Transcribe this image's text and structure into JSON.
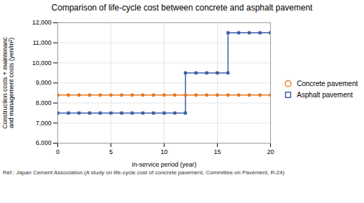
{
  "chart_data": {
    "type": "line",
    "title": "Comparison of life-cycle cost between concrete and asphalt pavement",
    "annotations": [
      "Ref.: Japan Cement Association (A study on life-cycle cost of concrete pavement, Committee on Pavement, R-24)"
    ],
    "xlabel": "In-service period (year)",
    "ylabel": "Construction costs + maintenanc\nand management costs (yen/m²)",
    "series": [
      {
        "name": "Concrete pavement",
        "color": "#E87820",
        "marker": "circle",
        "x": [
          0,
          1,
          2,
          3,
          4,
          5,
          6,
          7,
          8,
          9,
          10,
          11,
          12,
          13,
          14,
          15,
          16,
          17,
          18,
          19,
          20
        ],
        "values": [
          8400,
          8400,
          8400,
          8400,
          8400,
          8400,
          8400,
          8400,
          8400,
          8400,
          8400,
          8400,
          8400,
          8400,
          8400,
          8400,
          8400,
          8400,
          8400,
          8400,
          8400
        ]
      },
      {
        "name": "Asphalt pavement",
        "color": "#3A5EA8",
        "marker": "square",
        "x": [
          0,
          1,
          2,
          3,
          4,
          5,
          6,
          7,
          8,
          9,
          10,
          11,
          12,
          12,
          13,
          14,
          15,
          16,
          16,
          17,
          18,
          19,
          20
        ],
        "values": [
          7500,
          7500,
          7500,
          7500,
          7500,
          7500,
          7500,
          7500,
          7500,
          7500,
          7500,
          7500,
          7500,
          9500,
          9500,
          9500,
          9500,
          9500,
          11500,
          11500,
          11500,
          11500,
          11500
        ]
      }
    ],
    "xlim": [
      0,
      20
    ],
    "xticks": [
      0,
      5,
      10,
      15,
      20
    ],
    "ylim": [
      6000,
      12000
    ],
    "yticks": [
      {
        "value": 6000,
        "label": "6,000"
      },
      {
        "value": 7000,
        "label": "7,000"
      },
      {
        "value": 8000,
        "label": "8,000"
      },
      {
        "value": 9000,
        "label": "9,000"
      },
      {
        "value": 10000,
        "label": "10,000"
      },
      {
        "value": 11000,
        "label": "11,000"
      },
      {
        "value": 12000,
        "label": "12,000"
      }
    ],
    "grid": true,
    "legend": "right"
  }
}
